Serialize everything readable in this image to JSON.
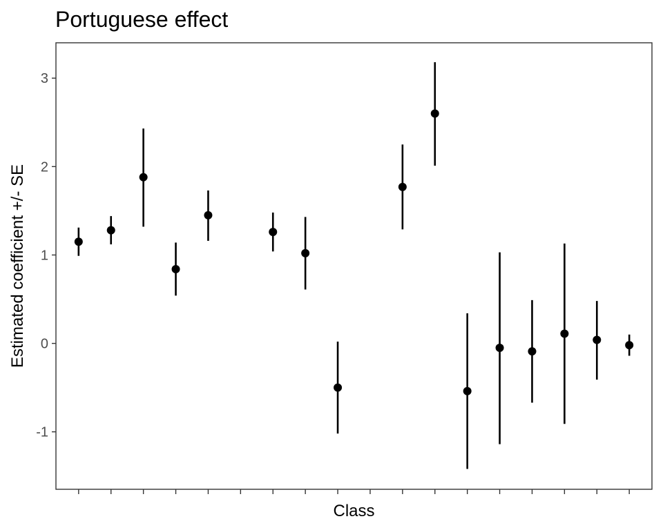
{
  "chart_data": {
    "type": "scatter",
    "title": "Portuguese effect",
    "xlabel": "Class",
    "ylabel": "Estimated coefficient +/- SE",
    "ylim": [
      -1.65,
      3.4
    ],
    "yticks": [
      -1,
      0,
      1,
      2,
      3
    ],
    "x_tick_count": 18,
    "x_tick_labels_shown": false,
    "grid": false,
    "error_bars": true,
    "points": [
      {
        "x": 1,
        "y": 1.15,
        "lower": 0.99,
        "upper": 1.31
      },
      {
        "x": 2,
        "y": 1.28,
        "lower": 1.12,
        "upper": 1.44
      },
      {
        "x": 3,
        "y": 1.88,
        "lower": 1.32,
        "upper": 2.43
      },
      {
        "x": 4,
        "y": 0.84,
        "lower": 0.54,
        "upper": 1.14
      },
      {
        "x": 5,
        "y": 1.45,
        "lower": 1.16,
        "upper": 1.73
      },
      {
        "x": 7,
        "y": 1.26,
        "lower": 1.04,
        "upper": 1.48
      },
      {
        "x": 8,
        "y": 1.02,
        "lower": 0.61,
        "upper": 1.43
      },
      {
        "x": 9,
        "y": -0.5,
        "lower": -1.02,
        "upper": 0.02
      },
      {
        "x": 11,
        "y": 1.77,
        "lower": 1.29,
        "upper": 2.25
      },
      {
        "x": 12,
        "y": 2.6,
        "lower": 2.01,
        "upper": 3.18
      },
      {
        "x": 13,
        "y": -0.54,
        "lower": -1.42,
        "upper": 0.34
      },
      {
        "x": 14,
        "y": -0.05,
        "lower": -1.14,
        "upper": 1.03
      },
      {
        "x": 15,
        "y": -0.09,
        "lower": -0.67,
        "upper": 0.49
      },
      {
        "x": 16,
        "y": 0.11,
        "lower": -0.91,
        "upper": 1.13
      },
      {
        "x": 17,
        "y": 0.04,
        "lower": -0.41,
        "upper": 0.48
      },
      {
        "x": 18,
        "y": -0.02,
        "lower": -0.14,
        "upper": 0.1
      }
    ]
  }
}
